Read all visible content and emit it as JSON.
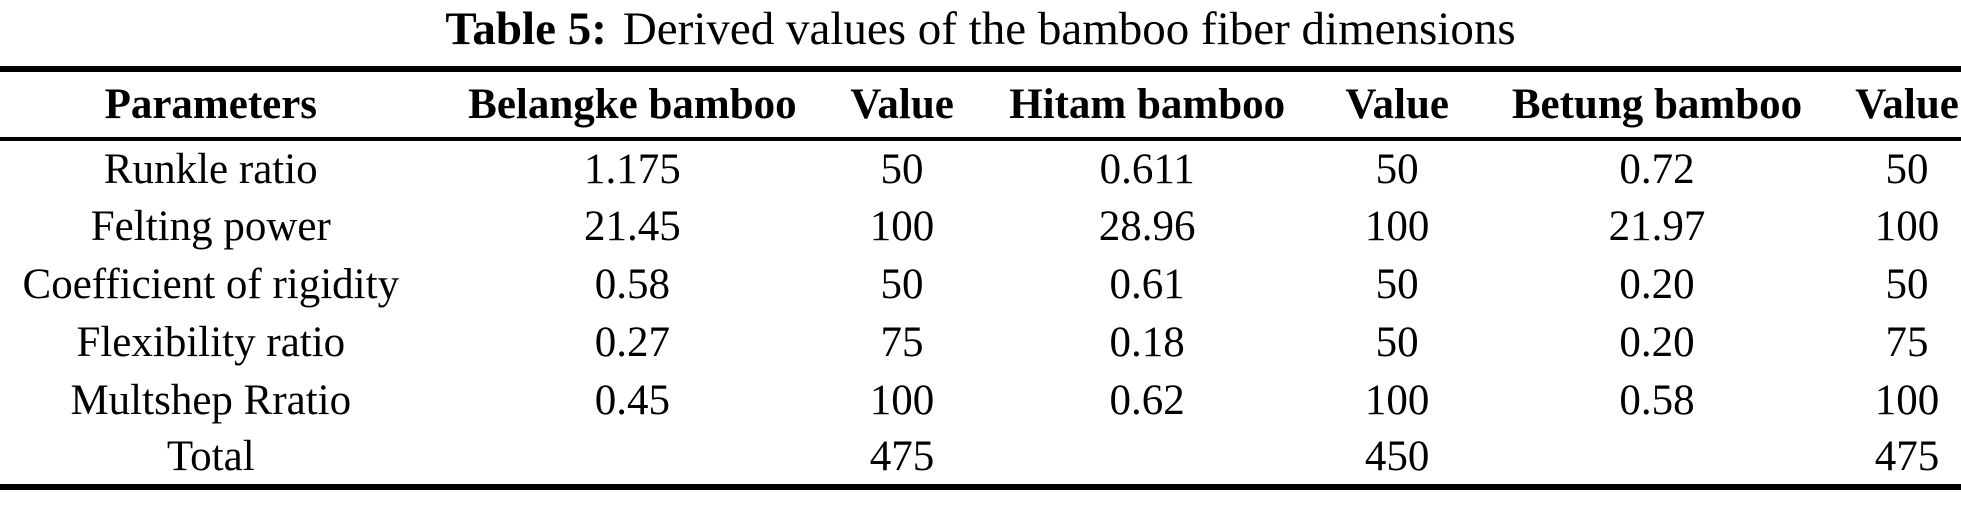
{
  "caption": {
    "label": "Table 5:",
    "text": "Derived values of the bamboo fiber dimensions"
  },
  "table": {
    "columns": [
      "Parameters",
      "Belangke bamboo",
      "Value",
      "Hitam bamboo",
      "Value",
      "Betung bamboo",
      "Value"
    ],
    "rows": [
      [
        "Runkle ratio",
        "1.175",
        "50",
        "0.611",
        "50",
        "0.72",
        "50"
      ],
      [
        "Felting power",
        "21.45",
        "100",
        "28.96",
        "100",
        "21.97",
        "100"
      ],
      [
        "Coefficient of rigidity",
        "0.58",
        "50",
        "0.61",
        "50",
        "0.20",
        "50"
      ],
      [
        "Flexibility ratio",
        "0.27",
        "75",
        "0.18",
        "50",
        "0.20",
        "75"
      ],
      [
        "Multshep Rratio",
        "0.45",
        "100",
        "0.62",
        "100",
        "0.58",
        "100"
      ],
      [
        "Total",
        "",
        "475",
        "",
        "450",
        "",
        "475"
      ]
    ]
  },
  "colors": {
    "background": "#ffffff",
    "text": "#000000",
    "rule": "#000000"
  }
}
